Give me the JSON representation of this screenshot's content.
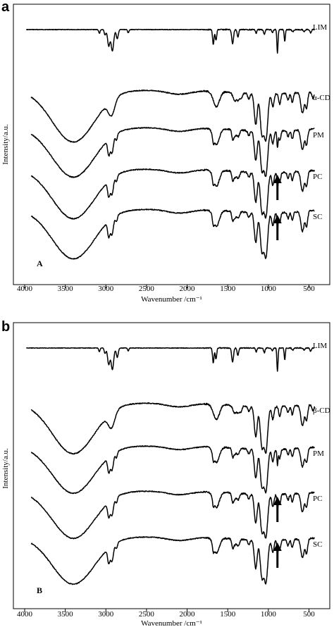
{
  "panels": [
    {
      "panel_letter": "a",
      "inner_label": "A",
      "chart_data": {
        "type": "line",
        "title": "",
        "xlabel": "Wavenumber /cm⁻¹",
        "ylabel": "Intensity/a.u.",
        "x_ticks": [
          4000,
          3500,
          3000,
          2500,
          2000,
          1500,
          1000,
          500
        ],
        "xlim": [
          4000,
          400
        ],
        "x_reversed": true,
        "grid": false,
        "legend": "labels at right end of each trace",
        "series": [
          {
            "name": "LIM",
            "kind": "lim",
            "arrow": false
          },
          {
            "name": "α-CD",
            "kind": "cd",
            "arrow": false
          },
          {
            "name": "PM",
            "kind": "complex",
            "arrow": false
          },
          {
            "name": "PC",
            "kind": "complex",
            "arrow": true
          },
          {
            "name": "SC",
            "kind": "complex",
            "arrow": true
          }
        ]
      }
    },
    {
      "panel_letter": "b",
      "inner_label": "B",
      "chart_data": {
        "type": "line",
        "title": "",
        "xlabel": "Wavenumber /cm⁻¹",
        "ylabel": "Intensity/a.u.",
        "x_ticks": [
          4000,
          3500,
          3000,
          2500,
          2000,
          1500,
          1000,
          500
        ],
        "xlim": [
          4000,
          400
        ],
        "x_reversed": true,
        "grid": false,
        "legend": "labels at right end of each trace",
        "series": [
          {
            "name": "LIM",
            "kind": "lim",
            "arrow": false
          },
          {
            "name": "β-CD",
            "kind": "cd",
            "arrow": false
          },
          {
            "name": "PM",
            "kind": "complex",
            "arrow": false
          },
          {
            "name": "PC",
            "kind": "complex",
            "arrow": true
          },
          {
            "name": "SC",
            "kind": "complex",
            "arrow": true
          }
        ]
      }
    }
  ]
}
